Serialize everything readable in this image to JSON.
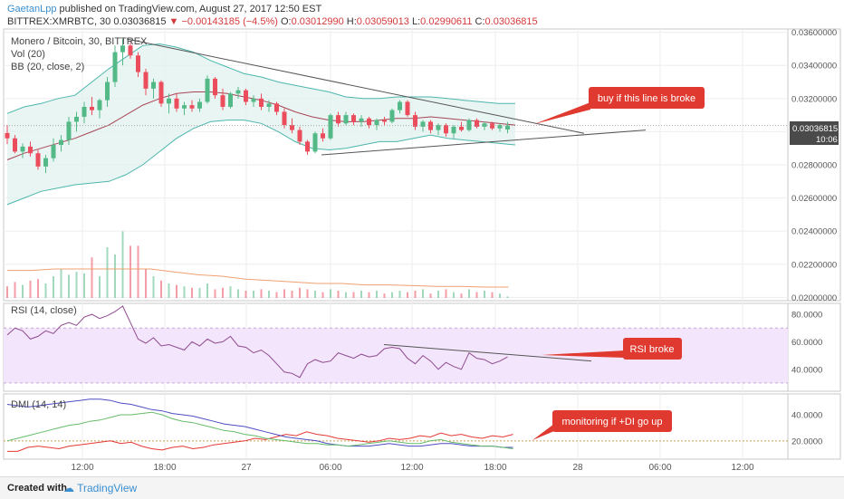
{
  "header": {
    "author": "GaetanLpp",
    "published": "published on TradingView.com, August 27, 2017 12:50 EST",
    "symbol": "BITTREX:XMRBTC, 30",
    "last": "0.03036815",
    "change": "−0.00143185 (−4.5%)",
    "o_label": "O:",
    "o": "0.03012990",
    "h_label": "H:",
    "h": "0.03059013",
    "l_label": "L:",
    "l": "0.02990611",
    "c_label": "C:",
    "c": "0.03036815"
  },
  "legend": {
    "title": "Monero / Bitcoin, 30, BITTREX",
    "vol": "Vol (20)",
    "bb": "BB (20, close, 2)",
    "rsi": "RSI (14, close)",
    "dmi": "DMI (14, 14)"
  },
  "annotations": {
    "buy": "buy if this line is broke",
    "rsi": "RSI broke",
    "dmi": "monitoring if +DI go up"
  },
  "price_label": {
    "value": "0.03036815",
    "time": "10:06"
  },
  "footer": {
    "created": "Created with",
    "brand": "TradingView"
  },
  "colors": {
    "up": "#53b987",
    "down": "#eb4d5c",
    "bb": "#4db6ac",
    "bb_fill": "#e0f2ef",
    "basis": "#a94455",
    "rsi": "#8e4a8e",
    "rsi_fill": "#f3e5fb",
    "plus_di": "#e53935",
    "minus_di": "#4d4dc2",
    "adx": "#66bb6a",
    "vol_ma": "#f0a070",
    "trend": "#555555",
    "callout": "#e0392f"
  },
  "chart_data": [
    {
      "type": "candlestick",
      "title": "Monero / Bitcoin, 30, BITTREX",
      "x_ticks": [
        "12:00",
        "18:00",
        "27",
        "06:00",
        "12:00",
        "18:00",
        "28",
        "06:00",
        "12:00"
      ],
      "y_ticks": [
        "0.03600000",
        "0.03400000",
        "0.03200000",
        "0.03000000",
        "0.02800000",
        "0.02600000",
        "0.02400000",
        "0.02200000",
        "0.02000000"
      ],
      "ylim": [
        0.0198,
        0.0362
      ],
      "candles": [
        [
          0.02992,
          0.0304,
          0.02925,
          0.0296
        ],
        [
          0.0296,
          0.0298,
          0.0287,
          0.0288
        ],
        [
          0.0288,
          0.0293,
          0.0284,
          0.0291
        ],
        [
          0.0291,
          0.0294,
          0.0285,
          0.0287
        ],
        [
          0.0287,
          0.0289,
          0.0277,
          0.0279
        ],
        [
          0.0279,
          0.0286,
          0.0275,
          0.0284
        ],
        [
          0.0284,
          0.0296,
          0.0282,
          0.0292
        ],
        [
          0.0292,
          0.0298,
          0.0288,
          0.0295
        ],
        [
          0.0295,
          0.0309,
          0.0292,
          0.0306
        ],
        [
          0.0306,
          0.0312,
          0.03,
          0.0309
        ],
        [
          0.0309,
          0.0318,
          0.0305,
          0.0315
        ],
        [
          0.0315,
          0.0321,
          0.031,
          0.0313
        ],
        [
          0.0313,
          0.032,
          0.0308,
          0.0319
        ],
        [
          0.0319,
          0.0333,
          0.0315,
          0.033
        ],
        [
          0.033,
          0.0352,
          0.0327,
          0.0348
        ],
        [
          0.0348,
          0.0356,
          0.034,
          0.0352
        ],
        [
          0.0352,
          0.0354,
          0.0344,
          0.0346
        ],
        [
          0.0346,
          0.0348,
          0.0333,
          0.0336
        ],
        [
          0.0336,
          0.0338,
          0.0322,
          0.0326
        ],
        [
          0.0326,
          0.0332,
          0.032,
          0.033
        ],
        [
          0.033,
          0.0331,
          0.0315,
          0.0317
        ],
        [
          0.0317,
          0.0323,
          0.0311,
          0.032
        ],
        [
          0.032,
          0.0323,
          0.0312,
          0.0314
        ],
        [
          0.0314,
          0.0318,
          0.031,
          0.0316
        ],
        [
          0.0316,
          0.0319,
          0.0312,
          0.0314
        ],
        [
          0.0314,
          0.032,
          0.0312,
          0.0318
        ],
        [
          0.0318,
          0.0334,
          0.0317,
          0.0332
        ],
        [
          0.0332,
          0.0333,
          0.032,
          0.0322
        ],
        [
          0.0322,
          0.0326,
          0.0313,
          0.0315
        ],
        [
          0.0315,
          0.0324,
          0.0314,
          0.0323
        ],
        [
          0.0323,
          0.0327,
          0.032,
          0.0325
        ],
        [
          0.0325,
          0.0326,
          0.0316,
          0.0318
        ],
        [
          0.0318,
          0.0322,
          0.0315,
          0.032
        ],
        [
          0.032,
          0.0323,
          0.0313,
          0.0315
        ],
        [
          0.0315,
          0.0319,
          0.0312,
          0.0317
        ],
        [
          0.0317,
          0.0318,
          0.031,
          0.0312
        ],
        [
          0.0312,
          0.0314,
          0.0302,
          0.0304
        ],
        [
          0.0304,
          0.0308,
          0.0299,
          0.0301
        ],
        [
          0.0301,
          0.0303,
          0.0292,
          0.0294
        ],
        [
          0.0294,
          0.0295,
          0.0286,
          0.0288
        ],
        [
          0.0288,
          0.03,
          0.0287,
          0.0299
        ],
        [
          0.0299,
          0.0302,
          0.0294,
          0.0296
        ],
        [
          0.0296,
          0.0311,
          0.0295,
          0.031
        ],
        [
          0.031,
          0.0312,
          0.0303,
          0.0305
        ],
        [
          0.0305,
          0.0312,
          0.0304,
          0.031
        ],
        [
          0.031,
          0.0311,
          0.0304,
          0.0306
        ],
        [
          0.0306,
          0.031,
          0.0303,
          0.0308
        ],
        [
          0.0308,
          0.0309,
          0.0302,
          0.0304
        ],
        [
          0.0304,
          0.0308,
          0.0301,
          0.0307
        ],
        [
          0.0307,
          0.0309,
          0.0304,
          0.0306
        ],
        [
          0.0306,
          0.0314,
          0.0305,
          0.0313
        ],
        [
          0.0313,
          0.0319,
          0.0311,
          0.0318
        ],
        [
          0.0318,
          0.0319,
          0.0309,
          0.031
        ],
        [
          0.031,
          0.0312,
          0.0301,
          0.0303
        ],
        [
          0.0303,
          0.0307,
          0.03,
          0.0306
        ],
        [
          0.0306,
          0.0307,
          0.0299,
          0.0301
        ],
        [
          0.0301,
          0.0305,
          0.0298,
          0.0304
        ],
        [
          0.0304,
          0.0305,
          0.0297,
          0.0299
        ],
        [
          0.0299,
          0.0304,
          0.0296,
          0.0303
        ],
        [
          0.0303,
          0.0306,
          0.03,
          0.0301
        ],
        [
          0.0301,
          0.0308,
          0.03,
          0.0307
        ],
        [
          0.0307,
          0.0308,
          0.0302,
          0.0303
        ],
        [
          0.0303,
          0.0306,
          0.0301,
          0.0305
        ],
        [
          0.0305,
          0.0306,
          0.0301,
          0.0302
        ],
        [
          0.0302,
          0.0305,
          0.03,
          0.0304
        ],
        [
          0.0301299,
          0.03059013,
          0.02990611,
          0.03036815
        ]
      ],
      "bollinger": {
        "upper": [
          0.0311,
          0.0315,
          0.0317,
          0.032,
          0.0322,
          0.033,
          0.0338,
          0.0345,
          0.0352,
          0.0353,
          0.0351,
          0.0348,
          0.0343,
          0.0339,
          0.0335,
          0.0333,
          0.033,
          0.0328,
          0.0326,
          0.0324,
          0.0321,
          0.032,
          0.032,
          0.0321,
          0.0321,
          0.0321,
          0.032,
          0.0319,
          0.0318,
          0.0317,
          0.0317
        ],
        "lower": [
          0.0256,
          0.026,
          0.0264,
          0.0266,
          0.0268,
          0.0269,
          0.027,
          0.0274,
          0.028,
          0.0288,
          0.0296,
          0.0302,
          0.0306,
          0.0307,
          0.0307,
          0.0305,
          0.03,
          0.0294,
          0.029,
          0.0289,
          0.029,
          0.0292,
          0.0294,
          0.0294,
          0.0296,
          0.0298,
          0.0296,
          0.0295,
          0.0294,
          0.0293,
          0.0292
        ],
        "basis": [
          0.0283,
          0.0287,
          0.029,
          0.0293,
          0.0296,
          0.03,
          0.0304,
          0.031,
          0.0316,
          0.032,
          0.0323,
          0.0324,
          0.0324,
          0.0323,
          0.0321,
          0.0319,
          0.0316,
          0.0312,
          0.0309,
          0.0307,
          0.0306,
          0.0306,
          0.0307,
          0.0308,
          0.0308,
          0.0309,
          0.0308,
          0.0307,
          0.0306,
          0.0305,
          0.0304
        ]
      },
      "volume": [
        0.8,
        1.1,
        0.9,
        1.2,
        1.3,
        1.0,
        1.5,
        2.0,
        1.6,
        1.8,
        1.7,
        2.8,
        1.5,
        3.5,
        3.0,
        4.6,
        3.6,
        3.6,
        2.0,
        1.5,
        1.2,
        1.0,
        0.9,
        0.8,
        0.7,
        0.7,
        1.0,
        0.6,
        0.7,
        0.8,
        0.6,
        0.5,
        0.5,
        0.6,
        0.5,
        0.4,
        0.6,
        0.5,
        0.7,
        0.6,
        0.5,
        0.4,
        0.6,
        0.5,
        0.4,
        0.4,
        0.5,
        0.4,
        0.5,
        0.3,
        0.4,
        0.5,
        0.4,
        0.5,
        0.6,
        0.3,
        0.5,
        0.6,
        0.4,
        0.3,
        0.6,
        0.4,
        0.5,
        0.4,
        0.3,
        0.1
      ],
      "volume_ma": [
        1.9,
        1.9,
        2.0,
        2.0,
        2.0,
        2.0,
        2.0,
        1.8,
        1.6,
        1.5,
        1.3,
        1.2,
        1.1,
        1.0,
        1.0,
        0.9,
        0.9,
        0.85,
        0.8,
        0.8,
        0.75,
        0.75
      ],
      "annotation": "buy if this line is broke"
    },
    {
      "type": "line",
      "title": "RSI (14, close)",
      "y_ticks": [
        "80.0000",
        "60.0000",
        "40.0000"
      ],
      "ylim": [
        24,
        88
      ],
      "band": [
        30,
        70
      ],
      "values": [
        65,
        70,
        68,
        62,
        64,
        68,
        66,
        72,
        74,
        72,
        78,
        80,
        77,
        79,
        82,
        86,
        74,
        62,
        59,
        63,
        57,
        58,
        56,
        54,
        60,
        57,
        62,
        59,
        60,
        64,
        57,
        56,
        52,
        54,
        50,
        44,
        38,
        37,
        34,
        44,
        47,
        45,
        46,
        52,
        50,
        48,
        51,
        49,
        50,
        55,
        56,
        55,
        48,
        44,
        50,
        46,
        40,
        45,
        42,
        40,
        52,
        48,
        47,
        44,
        46,
        49
      ],
      "annotation": "RSI broke"
    },
    {
      "type": "line",
      "title": "DMI (14, 14)",
      "y_ticks": [
        "40.0000",
        "20.0000"
      ],
      "ylim": [
        6,
        56
      ],
      "series": [
        {
          "values": [
            12,
            12,
            15,
            16,
            15,
            14,
            16,
            17,
            18,
            19,
            20,
            18,
            19,
            16,
            14,
            13,
            15,
            16,
            14,
            15,
            17,
            18,
            19,
            20,
            22,
            21,
            23,
            25,
            24,
            27,
            25,
            24,
            22,
            21,
            20,
            19,
            20,
            22,
            21,
            22,
            24,
            23,
            26,
            24,
            25,
            23,
            22,
            24,
            23,
            25
          ]
        },
        {
          "values": [
            48,
            47,
            46,
            47,
            48,
            49,
            50,
            51,
            52,
            52,
            51,
            49,
            48,
            46,
            44,
            43,
            41,
            40,
            39,
            37,
            35,
            33,
            32,
            31,
            29,
            27,
            25,
            23,
            22,
            21,
            20,
            18,
            17,
            16,
            16,
            16,
            17,
            18,
            17,
            16,
            16,
            17,
            18,
            18,
            17,
            16,
            16,
            16,
            15,
            15
          ]
        },
        {
          "values": [
            20,
            22,
            24,
            26,
            28,
            30,
            32,
            33,
            35,
            36,
            38,
            40,
            40,
            41,
            42,
            40,
            37,
            35,
            34,
            32,
            30,
            28,
            27,
            25,
            24,
            22,
            21,
            20,
            19,
            18,
            18,
            17,
            17,
            16,
            17,
            18,
            19,
            20,
            19,
            18,
            18,
            20,
            21,
            19,
            18,
            17,
            16,
            16,
            15,
            14
          ]
        }
      ],
      "reference": 20,
      "annotation": "monitoring if +DI go up"
    }
  ]
}
